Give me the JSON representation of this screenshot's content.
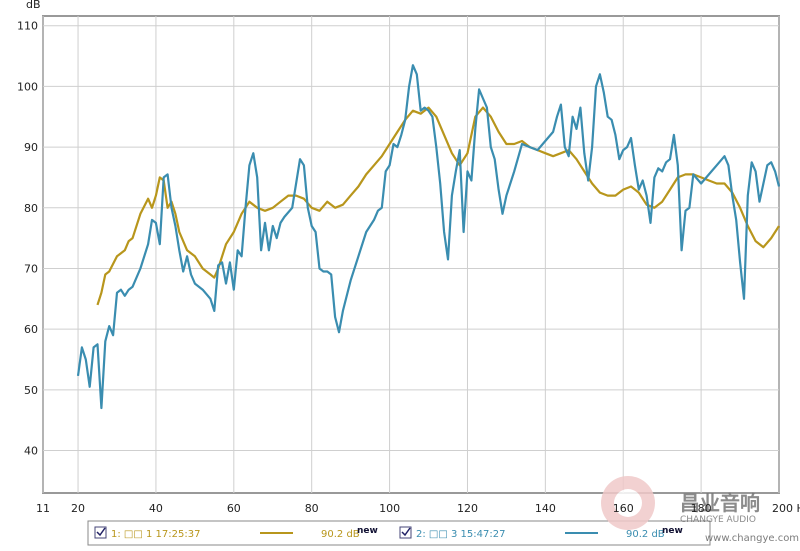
{
  "chart_data": {
    "type": "line",
    "ylabel": "dB",
    "xlim": [
      11,
      200
    ],
    "xticks": [
      11,
      20,
      40,
      60,
      80,
      100,
      120,
      140,
      160,
      180,
      {
        "value": 200,
        "label": "200 Hz"
      }
    ],
    "ylim": [
      33,
      111.6
    ],
    "yticks": [
      40,
      50,
      60,
      70,
      80,
      90,
      100,
      110
    ],
    "grid": true,
    "series": [
      {
        "name": "1: □□ 1 17:25:37",
        "color": "#b8961c",
        "value_label": "90.2 dB",
        "badge": "new",
        "x": [
          25,
          26,
          27,
          28,
          30,
          32,
          33,
          34,
          36,
          38,
          39,
          40,
          41,
          42,
          43,
          44,
          45,
          46,
          48,
          50,
          52,
          54,
          55,
          56,
          58,
          60,
          62,
          64,
          66,
          68,
          70,
          72,
          74,
          76,
          78,
          80,
          82,
          84,
          86,
          88,
          90,
          92,
          94,
          96,
          98,
          100,
          102,
          104,
          106,
          108,
          110,
          112,
          114,
          116,
          118,
          120,
          122,
          124,
          126,
          128,
          130,
          132,
          134,
          136,
          138,
          140,
          142,
          144,
          146,
          148,
          150,
          152,
          154,
          156,
          158,
          160,
          162,
          164,
          166,
          168,
          170,
          172,
          174,
          176,
          178,
          180,
          182,
          184,
          186,
          188,
          190,
          192,
          194,
          196,
          198,
          200
        ],
        "values": [
          64,
          66,
          69,
          69.5,
          72,
          73,
          74.5,
          75,
          79,
          81.5,
          80,
          82,
          85,
          84.5,
          80,
          81,
          79,
          76,
          73,
          72,
          70,
          69,
          68.5,
          70,
          74,
          76,
          79,
          81,
          80,
          79.5,
          80,
          81,
          82,
          82,
          81.5,
          80,
          79.5,
          81,
          80,
          80.5,
          82,
          83.5,
          85.5,
          87,
          88.5,
          90.5,
          92.5,
          94.5,
          96,
          95.5,
          96.5,
          95,
          92,
          89,
          87,
          89,
          95,
          96.5,
          95,
          92.5,
          90.5,
          90.5,
          91,
          90,
          89.5,
          89,
          88.5,
          89,
          89.5,
          88,
          86,
          84,
          82.5,
          82,
          82,
          83,
          83.5,
          82.5,
          80.5,
          80,
          81,
          83,
          85,
          85.5,
          85.5,
          85,
          84.5,
          84,
          84,
          82.5,
          80,
          77,
          74.5,
          73.5,
          75,
          77
        ]
      },
      {
        "name": "2: □□ 3 15:47:27",
        "color": "#3a8db0",
        "value_label": "90.2 dB",
        "badge": "new",
        "x": [
          20,
          21,
          22,
          23,
          24,
          25,
          26,
          27,
          28,
          29,
          30,
          31,
          32,
          33,
          34,
          36,
          38,
          39,
          40,
          41,
          42,
          43,
          44,
          45,
          46,
          47,
          48,
          49,
          50,
          52,
          54,
          55,
          56,
          57,
          58,
          59,
          60,
          61,
          62,
          63,
          64,
          65,
          66,
          67,
          68,
          69,
          70,
          71,
          72,
          73,
          75,
          77,
          78,
          79,
          80,
          81,
          82,
          83,
          84,
          85,
          86,
          87,
          88,
          90,
          92,
          94,
          96,
          97,
          98,
          99,
          100,
          101,
          102,
          103,
          104,
          105,
          106,
          107,
          108,
          109,
          110,
          111,
          112,
          113,
          114,
          115,
          116,
          117,
          118,
          119,
          120,
          121,
          122,
          123,
          124,
          125,
          126,
          127,
          128,
          129,
          130,
          132,
          134,
          136,
          138,
          140,
          142,
          143,
          144,
          145,
          146,
          147,
          148,
          149,
          150,
          151,
          152,
          153,
          154,
          155,
          156,
          157,
          158,
          159,
          160,
          161,
          162,
          163,
          164,
          165,
          166,
          167,
          168,
          169,
          170,
          171,
          172,
          173,
          174,
          175,
          176,
          177,
          178,
          180,
          182,
          184,
          186,
          187,
          188,
          189,
          190,
          191,
          192,
          193,
          194,
          195,
          196,
          197,
          198,
          199,
          200
        ],
        "values": [
          52.3,
          57,
          55,
          50.5,
          57,
          57.5,
          47,
          58,
          60.5,
          59,
          66,
          66.5,
          65.5,
          66.5,
          67,
          70,
          74,
          78,
          77.5,
          74,
          85,
          85.5,
          80,
          77,
          73,
          69.5,
          72,
          69,
          67.5,
          66.5,
          65,
          63,
          70.5,
          71,
          67.5,
          71,
          66.5,
          73,
          72,
          80,
          87,
          89,
          85,
          73,
          77.5,
          73,
          77,
          75,
          77.5,
          78.5,
          80,
          88,
          87,
          80,
          77,
          76,
          70,
          69.5,
          69.5,
          69,
          62,
          59.5,
          63,
          68,
          72,
          76,
          78,
          79.5,
          80,
          86,
          87,
          90.5,
          90,
          92,
          94.5,
          100,
          103.5,
          102,
          96,
          96.5,
          96,
          95,
          90,
          84,
          76,
          71.5,
          82,
          86,
          89.5,
          76,
          86,
          84.5,
          93,
          99.5,
          98,
          96.5,
          90,
          88,
          83,
          79,
          82,
          86,
          90.5,
          90,
          89.5,
          91,
          92.5,
          95,
          97,
          90,
          88.5,
          95,
          93,
          96.5,
          89,
          84.5,
          90,
          100,
          102,
          99,
          95,
          94.5,
          92,
          88,
          89.5,
          90,
          91.5,
          87,
          83,
          84.5,
          82,
          77.5,
          85,
          86.5,
          86,
          87.5,
          88,
          92,
          87,
          73,
          79.5,
          80,
          85.5,
          84,
          85.5,
          87,
          88.5,
          87,
          82,
          78,
          71,
          65,
          82,
          87.5,
          86,
          81,
          84,
          87,
          87.5,
          86,
          83.5
        ]
      }
    ],
    "annotations": [
      "昌业音响",
      "CHANGYE AUDIO",
      "www.changye.com.cn"
    ]
  }
}
